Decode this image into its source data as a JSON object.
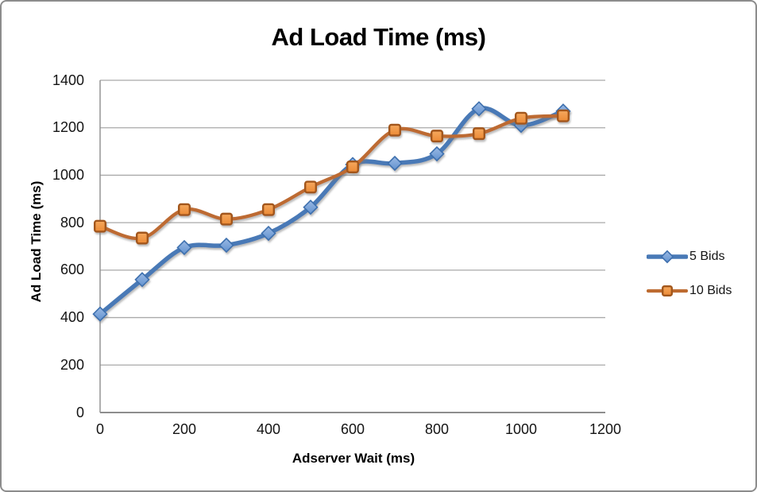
{
  "chart_data": {
    "type": "line",
    "smooth": true,
    "title": "Ad Load Time (ms)",
    "xlabel": "Adserver Wait (ms)",
    "ylabel": "Ad Load Time (ms)",
    "xlim": [
      0,
      1200
    ],
    "ylim": [
      0,
      1400
    ],
    "x_ticks": [
      0,
      200,
      400,
      600,
      800,
      1000,
      1200
    ],
    "y_ticks": [
      0,
      200,
      400,
      600,
      800,
      1000,
      1200,
      1400
    ],
    "grid": "horizontal",
    "legend_position": "right",
    "x": [
      0,
      100,
      200,
      300,
      400,
      500,
      600,
      700,
      800,
      900,
      1000,
      1100
    ],
    "series": [
      {
        "name": "5 Bids",
        "marker": "diamond",
        "line_color": "#4879b6",
        "marker_fill_light": "#9ab9e4",
        "marker_fill_dark": "#6292cf",
        "marker_border": "#3e6fae",
        "values": [
          415,
          560,
          695,
          705,
          755,
          865,
          1045,
          1050,
          1090,
          1280,
          1210,
          1270
        ]
      },
      {
        "name": "10 Bids",
        "marker": "square",
        "line_color": "#bd6b31",
        "marker_fill_light": "#f5a95f",
        "marker_fill_dark": "#ec8a35",
        "marker_border": "#a2571c",
        "values": [
          785,
          735,
          855,
          815,
          855,
          950,
          1035,
          1190,
          1165,
          1175,
          1240,
          1250
        ]
      }
    ]
  },
  "colors": {
    "gridline": "#a9a9a9",
    "axis_line": "#8d8d8d",
    "frame_border": "#8c8c8c",
    "text": "#141414",
    "background": "#ffffff"
  }
}
